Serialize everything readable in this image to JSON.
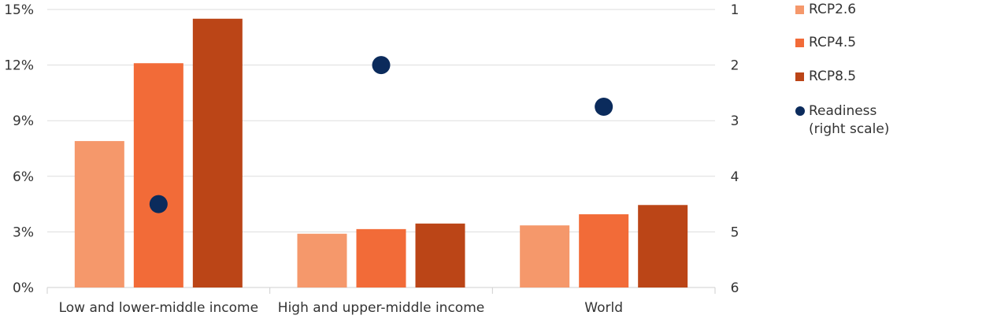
{
  "chart_data": {
    "type": "bar",
    "categories": [
      "Low and lower-middle income",
      "High and upper-middle income",
      "World"
    ],
    "series": [
      {
        "name": "RCP2.6",
        "values": [
          7.9,
          2.9,
          3.35
        ],
        "color": "#f5986b"
      },
      {
        "name": "RCP4.5",
        "values": [
          12.1,
          3.15,
          3.95
        ],
        "color": "#f26b38"
      },
      {
        "name": "RCP8.5",
        "values": [
          14.5,
          3.45,
          4.45
        ],
        "color": "#bb4517"
      }
    ],
    "overlay": {
      "name": "Readiness",
      "legend_lines": [
        "Readiness",
        "(right scale)"
      ],
      "type": "scatter",
      "axis": "right",
      "values": [
        4.5,
        2.0,
        2.75
      ],
      "color": "#0b2b5c"
    },
    "left_axis": {
      "ylim": [
        0,
        15
      ],
      "ticks": [
        "0%",
        "3%",
        "6%",
        "9%",
        "12%",
        "15%"
      ],
      "tick_values": [
        0,
        3,
        6,
        9,
        12,
        15
      ]
    },
    "right_axis": {
      "ylim": [
        1,
        6
      ],
      "inverted": true,
      "ticks": [
        "1",
        "2",
        "3",
        "4",
        "5",
        "6"
      ],
      "tick_values": [
        1,
        2,
        3,
        4,
        5,
        6
      ]
    },
    "grid": true,
    "legend_position": "right"
  }
}
